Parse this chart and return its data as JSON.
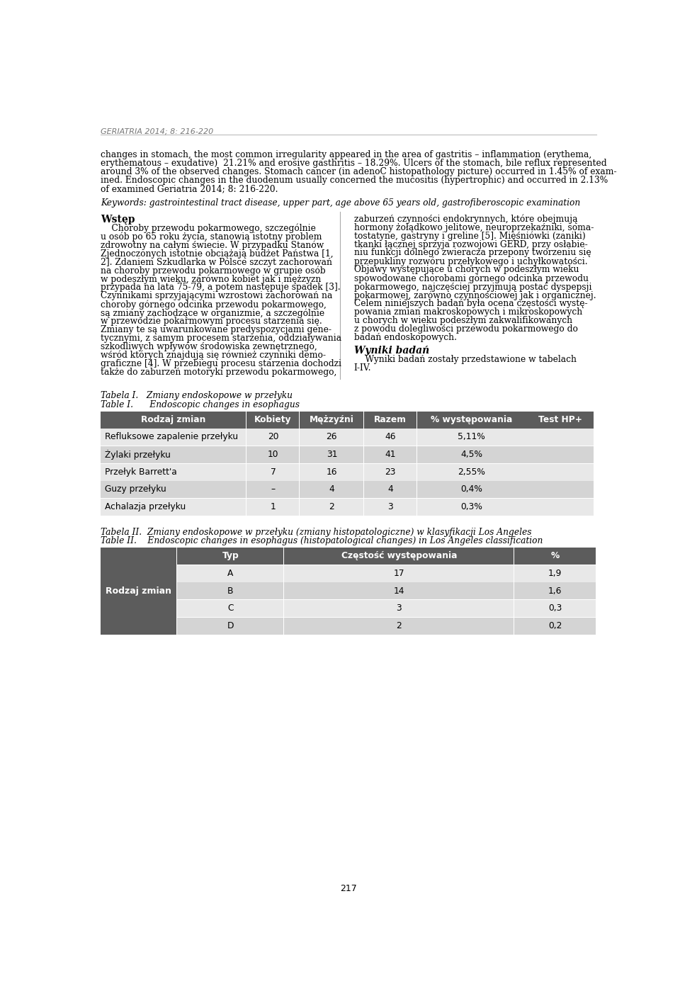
{
  "header_text": "GERIATRIA 2014; 8: 216-220",
  "header_line_color": "#bbbbbb",
  "background_color": "#ffffff",
  "body_text_color": "#000000",
  "para_lines": [
    "changes in stomach, the most common irregularity appeared in the area of gastritis – inflammation (erythema,",
    "erythematous – exudative)  21.21% and erosive gasthritis – 18.29%. Ulcers of the stomach, bile reflux represented",
    "around 3% of the observed changes. Stomach cancer (in adenoC histopathology picture) occurred in 1.45% of exam-",
    "ined. Endoscopic changes in the duodenum usually concerned the mucositis (hypertrophic) and occurred in 2.13%",
    "of examined Geriatria 2014; 8: 216-220."
  ],
  "keywords_text": "Keywords: gastrointestinal tract disease, upper part, age above 65 years old, gastrofiberoscopic examination",
  "col1_heading": "Wstęp",
  "col1_lines": [
    "    Choroby przewodu pokarmowego, szczególnie",
    "u osób po 65 roku życia, stanowią istotny problem",
    "zdrowotny na całym świecie. W przypadku Stanów",
    "Zjednoczonych istotnie obciążają budżet Państwa [1,",
    "2]. Zdaniem Szkudlarka w Polsce szczyt zachorowań",
    "na choroby przewodu pokarmowego w grupie osób",
    "w podeszłym wieku, zarówno kobiet jak i mężzyzn",
    "przypada na lata 75-79, a potem następuje spadek [3].",
    "Czynnikami sprzyjającymi wzrostowi zachorowań na",
    "choroby górnego odcinka przewodu pokarmowego,",
    "są zmiany zachodzące w organizmie, a szczególnie",
    "w przewodzie pokarmowym procesu starzenia się.",
    "Zmiany te są uwarunkowane predyspozycjami gene-",
    "tycznymi, z samym procesem starzenia, oddziaływania",
    "szkodliwych wpływów środowiska zewnętrznego,",
    "wśród których znajdują się również czynniki demo-",
    "graficzne [4]. W przebiegu procesu starzenia dochodzi",
    "także do zaburzeń motoryki przewodu pokarmowego,"
  ],
  "col2_lines": [
    "zaburzeń czynności endokrynnych, które obejmują",
    "hormony żołądkowo jelitowe, neuroprzekaźniki, soma-",
    "tostatyne, gastryny i greline [5]. Mięśniówki (zaniki)",
    "tkanki łącznej sprzyja rozwojowi GERD, przy osłabie-",
    "niu funkcji dolnego zwieracza przepony tworzeniu się",
    "przepukliny rozwóru przełykowego i uchyłkowatości.",
    "Objawy występujące u chorych w podeszłym wieku",
    "spowodowane chorobami górnego odcinka przewodu",
    "pokarmowego, najczęściej przyjmują postać dyspepsji",
    "pokarmowej, zarówno czynnościowej jak i organicznej.",
    "Celem niniejszych badań była ocena częstości wystę-",
    "powania zmian makroskopowych i mikroskopowych",
    "u chorych w wieku podeszłym zakwalifikowanych",
    "z powodu dolegliwości przewodu pokarmowego do",
    "badań endoskopowych."
  ],
  "wyniki_heading": "Wyniki badań",
  "wyniki_lines": [
    "    Wyniki badań zostały przedstawione w tabelach",
    "I-IV."
  ],
  "tabela1_title_pl": "Tabela I.   Zmiany endoskopowe w przełyku",
  "tabela1_title_en": "Table I.      Endoscopic changes in esophagus",
  "tabela1_header": [
    "Rodzaj zmian",
    "Kobiety",
    "Mężzyźni",
    "Razem",
    "% występowania",
    "Test HP+"
  ],
  "tabela1_rows": [
    [
      "Refluksowe zapalenie przełyku",
      "20",
      "26",
      "46",
      "5,11%",
      ""
    ],
    [
      "Żylaki przełyku",
      "10",
      "31",
      "41",
      "4,5%",
      ""
    ],
    [
      "Przełyk Barrett'a",
      "7",
      "16",
      "23",
      "2,55%",
      ""
    ],
    [
      "Guzy przełyku",
      "–",
      "4",
      "4",
      "0,4%",
      ""
    ],
    [
      "Achalazja przełyku",
      "1",
      "2",
      "3",
      "0,3%",
      ""
    ]
  ],
  "tabela2_title_pl": "Tabela II.  Zmiany endoskopowe w przełyku (zmiany histopatologiczne) w klasyfikacji Los Angeles",
  "tabela2_title_en": "Table II.    Endoscopic changes in esophagus (histopatological changes) in Los Angeles classification",
  "tabela2_header": [
    "Typ",
    "Częstość występowania",
    "%"
  ],
  "tabela2_left_label": "Rodzaj zmian",
  "tabela2_rows": [
    [
      "A",
      "17",
      "1,9"
    ],
    [
      "B",
      "14",
      "1,6"
    ],
    [
      "C",
      "3",
      "0,3"
    ],
    [
      "D",
      "2",
      "0,2"
    ]
  ],
  "page_number": "217",
  "table_header_bg": "#5c5c5c",
  "table_header_fg": "#ffffff",
  "table_row_bg_light": "#e8e8e8",
  "table_row_bg_dark": "#d4d4d4",
  "divider_color": "#aaaaaa",
  "header_color": "#777777"
}
